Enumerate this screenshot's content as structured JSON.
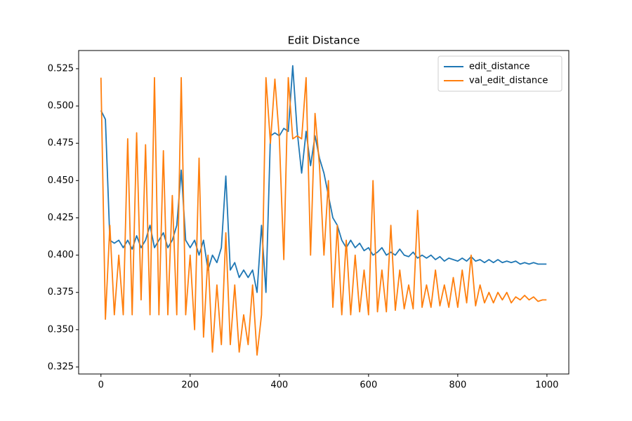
{
  "chart_data": {
    "type": "line",
    "title": "Edit Distance",
    "x": [
      0,
      10,
      20,
      30,
      40,
      50,
      60,
      70,
      80,
      90,
      100,
      110,
      120,
      130,
      140,
      150,
      160,
      170,
      180,
      190,
      200,
      210,
      220,
      230,
      240,
      250,
      260,
      270,
      280,
      290,
      300,
      310,
      320,
      330,
      340,
      350,
      360,
      370,
      380,
      390,
      400,
      410,
      420,
      430,
      440,
      450,
      460,
      470,
      480,
      490,
      500,
      510,
      520,
      530,
      540,
      550,
      560,
      570,
      580,
      590,
      600,
      610,
      620,
      630,
      640,
      650,
      660,
      670,
      680,
      690,
      700,
      710,
      720,
      730,
      740,
      750,
      760,
      770,
      780,
      790,
      800,
      810,
      820,
      830,
      840,
      850,
      860,
      870,
      880,
      890,
      900,
      910,
      920,
      930,
      940,
      950,
      960,
      970,
      980,
      990,
      999
    ],
    "series": [
      {
        "name": "edit_distance",
        "color": "#1f77b4",
        "values": [
          0.497,
          0.491,
          0.41,
          0.408,
          0.41,
          0.405,
          0.41,
          0.404,
          0.413,
          0.405,
          0.41,
          0.42,
          0.405,
          0.41,
          0.415,
          0.405,
          0.41,
          0.42,
          0.457,
          0.41,
          0.405,
          0.41,
          0.4,
          0.41,
          0.39,
          0.4,
          0.395,
          0.405,
          0.453,
          0.39,
          0.395,
          0.385,
          0.39,
          0.385,
          0.39,
          0.375,
          0.42,
          0.375,
          0.48,
          0.482,
          0.48,
          0.485,
          0.483,
          0.527,
          0.483,
          0.455,
          0.483,
          0.46,
          0.48,
          0.465,
          0.455,
          0.44,
          0.425,
          0.42,
          0.41,
          0.405,
          0.41,
          0.405,
          0.408,
          0.403,
          0.405,
          0.4,
          0.402,
          0.405,
          0.4,
          0.402,
          0.4,
          0.404,
          0.4,
          0.399,
          0.402,
          0.398,
          0.4,
          0.398,
          0.4,
          0.397,
          0.399,
          0.396,
          0.398,
          0.397,
          0.396,
          0.398,
          0.396,
          0.399,
          0.396,
          0.397,
          0.395,
          0.397,
          0.395,
          0.397,
          0.395,
          0.396,
          0.395,
          0.396,
          0.394,
          0.395,
          0.394,
          0.395,
          0.394,
          0.394,
          0.394
        ]
      },
      {
        "name": "val_edit_distance",
        "color": "#ff7f0e",
        "values": [
          0.519,
          0.357,
          0.42,
          0.36,
          0.4,
          0.36,
          0.478,
          0.36,
          0.482,
          0.37,
          0.474,
          0.36,
          0.519,
          0.36,
          0.47,
          0.36,
          0.44,
          0.36,
          0.519,
          0.36,
          0.4,
          0.35,
          0.465,
          0.345,
          0.4,
          0.335,
          0.38,
          0.34,
          0.415,
          0.34,
          0.38,
          0.335,
          0.36,
          0.34,
          0.38,
          0.333,
          0.36,
          0.519,
          0.475,
          0.518,
          0.478,
          0.397,
          0.519,
          0.478,
          0.48,
          0.478,
          0.519,
          0.4,
          0.495,
          0.46,
          0.4,
          0.45,
          0.365,
          0.42,
          0.36,
          0.41,
          0.36,
          0.4,
          0.362,
          0.39,
          0.36,
          0.45,
          0.362,
          0.39,
          0.362,
          0.42,
          0.363,
          0.39,
          0.364,
          0.38,
          0.364,
          0.43,
          0.365,
          0.38,
          0.365,
          0.39,
          0.366,
          0.38,
          0.365,
          0.385,
          0.365,
          0.39,
          0.368,
          0.4,
          0.366,
          0.38,
          0.368,
          0.375,
          0.368,
          0.375,
          0.37,
          0.375,
          0.368,
          0.372,
          0.37,
          0.373,
          0.37,
          0.372,
          0.369,
          0.37,
          0.37
        ]
      }
    ],
    "xlim": [
      -50,
      1049
    ],
    "ylim": [
      0.3203,
      0.5372
    ],
    "xticks": [
      0,
      200,
      400,
      600,
      800,
      1000
    ],
    "yticks": [
      0.325,
      {
        "value": 0.35,
        "label": "0.350"
      },
      0.375,
      {
        "value": 0.4,
        "label": "0.400"
      },
      0.425,
      {
        "value": 0.45,
        "label": "0.450"
      },
      0.475,
      {
        "value": 0.5,
        "label": "0.500"
      },
      0.525
    ],
    "legend": "upper right",
    "grid": false
  }
}
